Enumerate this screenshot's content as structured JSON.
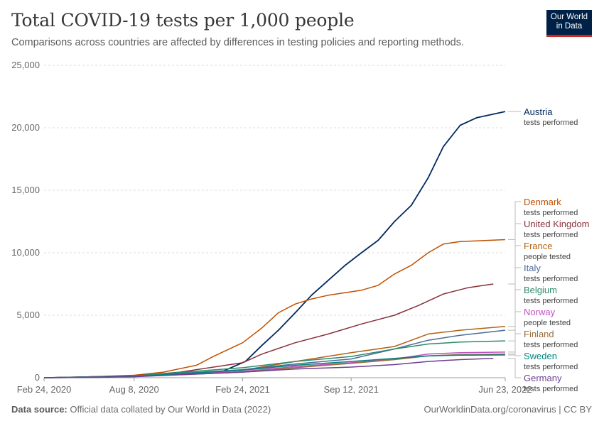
{
  "title": "Total COVID-19 tests per 1,000 people",
  "subtitle": "Comparisons across countries are affected by differences in testing policies and reporting methods.",
  "logo": {
    "line1": "Our World",
    "line2": "in Data"
  },
  "footer": {
    "source_label": "Data source:",
    "source_text": "Official data collated by Our World in Data (2022)",
    "right_text": "OurWorldinData.org/coronavirus | CC BY"
  },
  "chart_data": {
    "type": "line",
    "title": "Total COVID-19 tests per 1,000 people",
    "x_ticks": [
      "Feb 24, 2020",
      "Aug 8, 2020",
      "Feb 24, 2021",
      "Sep 12, 2021",
      "Jun 23, 2022"
    ],
    "x_tick_dates": [
      "2020-02-24",
      "2020-08-08",
      "2021-02-24",
      "2021-09-12",
      "2022-06-23"
    ],
    "ylim": [
      0,
      25000
    ],
    "y_ticks": [
      0,
      5000,
      10000,
      15000,
      20000,
      25000
    ],
    "y_tick_labels": [
      "0",
      "5,000",
      "10,000",
      "15,000",
      "20,000",
      "25,000"
    ],
    "grid": "horizontal dashed",
    "legend": "right-labels",
    "series": [
      {
        "name": "Austria",
        "sub": "tests performed",
        "color": "#00295b",
        "points": [
          [
            "2020-02-24",
            0
          ],
          [
            "2020-06-01",
            40
          ],
          [
            "2020-09-01",
            150
          ],
          [
            "2020-12-01",
            380
          ],
          [
            "2021-01-15",
            450
          ],
          [
            "2021-03-01",
            1300
          ],
          [
            "2021-04-01",
            2600
          ],
          [
            "2021-05-01",
            3800
          ],
          [
            "2021-06-01",
            5200
          ],
          [
            "2021-07-01",
            6600
          ],
          [
            "2021-08-01",
            7800
          ],
          [
            "2021-09-01",
            9000
          ],
          [
            "2021-10-01",
            10000
          ],
          [
            "2021-11-01",
            11000
          ],
          [
            "2021-12-01",
            12500
          ],
          [
            "2022-01-01",
            13800
          ],
          [
            "2022-02-01",
            16000
          ],
          [
            "2022-03-01",
            18500
          ],
          [
            "2022-04-01",
            20200
          ],
          [
            "2022-05-01",
            20800
          ],
          [
            "2022-06-23",
            21300
          ]
        ]
      },
      {
        "name": "Denmark",
        "sub": "tests performed",
        "color": "#c15000",
        "points": [
          [
            "2020-02-24",
            0
          ],
          [
            "2020-05-01",
            50
          ],
          [
            "2020-08-08",
            200
          ],
          [
            "2020-10-01",
            450
          ],
          [
            "2020-12-01",
            1000
          ],
          [
            "2021-01-01",
            1700
          ],
          [
            "2021-02-24",
            2800
          ],
          [
            "2021-04-01",
            4000
          ],
          [
            "2021-05-01",
            5200
          ],
          [
            "2021-06-01",
            5900
          ],
          [
            "2021-07-01",
            6300
          ],
          [
            "2021-08-01",
            6600
          ],
          [
            "2021-09-01",
            6800
          ],
          [
            "2021-10-01",
            7000
          ],
          [
            "2021-11-01",
            7400
          ],
          [
            "2021-12-01",
            8300
          ],
          [
            "2022-01-01",
            9000
          ],
          [
            "2022-02-01",
            10000
          ],
          [
            "2022-03-01",
            10700
          ],
          [
            "2022-04-01",
            10900
          ],
          [
            "2022-06-23",
            11050
          ]
        ]
      },
      {
        "name": "United Kingdom",
        "sub": "tests performed",
        "color": "#883039",
        "points": [
          [
            "2020-02-24",
            0
          ],
          [
            "2020-08-08",
            150
          ],
          [
            "2020-11-01",
            450
          ],
          [
            "2021-02-24",
            1200
          ],
          [
            "2021-04-01",
            1900
          ],
          [
            "2021-06-01",
            2800
          ],
          [
            "2021-08-01",
            3500
          ],
          [
            "2021-10-01",
            4300
          ],
          [
            "2021-12-01",
            5000
          ],
          [
            "2022-01-15",
            5800
          ],
          [
            "2022-03-01",
            6700
          ],
          [
            "2022-04-15",
            7200
          ],
          [
            "2022-06-01",
            7500
          ]
        ]
      },
      {
        "name": "France",
        "sub": "people tested",
        "color": "#b16214",
        "points": [
          [
            "2020-02-24",
            0
          ],
          [
            "2020-08-08",
            120
          ],
          [
            "2021-02-24",
            600
          ],
          [
            "2021-06-01",
            1300
          ],
          [
            "2021-09-12",
            2000
          ],
          [
            "2021-12-01",
            2500
          ],
          [
            "2022-02-01",
            3500
          ],
          [
            "2022-04-01",
            3800
          ],
          [
            "2022-06-23",
            4100
          ]
        ]
      },
      {
        "name": "Italy",
        "sub": "tests performed",
        "color": "#4c6a9c",
        "points": [
          [
            "2020-02-24",
            0
          ],
          [
            "2020-08-08",
            130
          ],
          [
            "2021-02-24",
            650
          ],
          [
            "2021-06-01",
            1100
          ],
          [
            "2021-09-12",
            1500
          ],
          [
            "2021-12-01",
            2300
          ],
          [
            "2022-02-01",
            3000
          ],
          [
            "2022-04-01",
            3400
          ],
          [
            "2022-06-23",
            3800
          ]
        ]
      },
      {
        "name": "Belgium",
        "sub": "tests performed",
        "color": "#2a8a6e",
        "points": [
          [
            "2020-02-24",
            0
          ],
          [
            "2020-08-08",
            150
          ],
          [
            "2021-02-24",
            800
          ],
          [
            "2021-06-01",
            1300
          ],
          [
            "2021-09-12",
            1700
          ],
          [
            "2021-12-01",
            2300
          ],
          [
            "2022-02-01",
            2700
          ],
          [
            "2022-04-01",
            2850
          ],
          [
            "2022-06-23",
            2950
          ]
        ]
      },
      {
        "name": "Norway",
        "sub": "people tested",
        "color": "#c050c0",
        "points": [
          [
            "2020-02-24",
            0
          ],
          [
            "2020-08-08",
            100
          ],
          [
            "2021-02-24",
            500
          ],
          [
            "2021-06-01",
            900
          ],
          [
            "2021-09-12",
            1200
          ],
          [
            "2021-12-01",
            1500
          ],
          [
            "2022-02-01",
            1900
          ],
          [
            "2022-04-01",
            2000
          ],
          [
            "2022-06-23",
            2050
          ]
        ]
      },
      {
        "name": "Finland",
        "sub": "tests performed",
        "color": "#996d39",
        "points": [
          [
            "2020-02-24",
            0
          ],
          [
            "2020-08-08",
            90
          ],
          [
            "2021-02-24",
            450
          ],
          [
            "2021-06-01",
            800
          ],
          [
            "2021-09-12",
            1150
          ],
          [
            "2021-12-01",
            1450
          ],
          [
            "2022-02-01",
            1750
          ],
          [
            "2022-04-01",
            1850
          ],
          [
            "2022-06-23",
            1900
          ]
        ]
      },
      {
        "name": "Sweden",
        "sub": "tests performed",
        "color": "#00847e",
        "points": [
          [
            "2020-02-24",
            0
          ],
          [
            "2020-08-08",
            100
          ],
          [
            "2021-02-24",
            600
          ],
          [
            "2021-06-01",
            1000
          ],
          [
            "2021-09-12",
            1300
          ],
          [
            "2021-12-01",
            1550
          ],
          [
            "2022-02-01",
            1750
          ],
          [
            "2022-04-01",
            1800
          ],
          [
            "2022-06-23",
            1820
          ]
        ]
      },
      {
        "name": "Germany",
        "sub": "tests performed",
        "color": "#6d3e91",
        "points": [
          [
            "2020-02-24",
            0
          ],
          [
            "2020-08-08",
            80
          ],
          [
            "2021-02-24",
            450
          ],
          [
            "2021-06-01",
            700
          ],
          [
            "2021-09-12",
            850
          ],
          [
            "2021-12-01",
            1050
          ],
          [
            "2022-02-01",
            1300
          ],
          [
            "2022-04-01",
            1450
          ],
          [
            "2022-06-01",
            1550
          ]
        ]
      }
    ]
  }
}
